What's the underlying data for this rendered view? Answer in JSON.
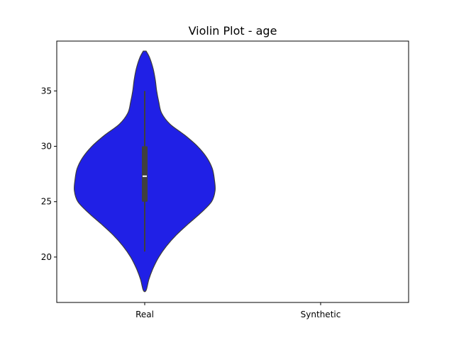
{
  "chart_data": {
    "type": "violin",
    "title": "Violin Plot - age",
    "xlabel": "",
    "ylabel": "",
    "categories": [
      "Real",
      "Synthetic"
    ],
    "ylim": [
      15.9,
      39.5
    ],
    "yticks": [
      20,
      25,
      30,
      35
    ],
    "grid": false,
    "series": [
      {
        "category": "Real",
        "color": "#2020e6",
        "edge_color": "#3c3c3c",
        "min": 17.0,
        "max": 38.6,
        "median": 27.3,
        "q1": 25.0,
        "q3": 30.0,
        "whisker_low": 20.5,
        "whisker_high": 35.0,
        "density_y": [
          17.0,
          18.0,
          19.0,
          20.0,
          21.0,
          22.0,
          23.0,
          24.0,
          25.0,
          26.0,
          27.0,
          28.0,
          29.0,
          30.0,
          31.0,
          32.0,
          33.0,
          34.0,
          35.0,
          36.0,
          37.0,
          38.0,
          38.6
        ],
        "density_width": [
          0.02,
          0.06,
          0.12,
          0.2,
          0.31,
          0.45,
          0.62,
          0.8,
          0.95,
          1.0,
          0.99,
          0.96,
          0.88,
          0.75,
          0.57,
          0.36,
          0.24,
          0.2,
          0.17,
          0.15,
          0.12,
          0.07,
          0.02
        ]
      }
    ]
  }
}
